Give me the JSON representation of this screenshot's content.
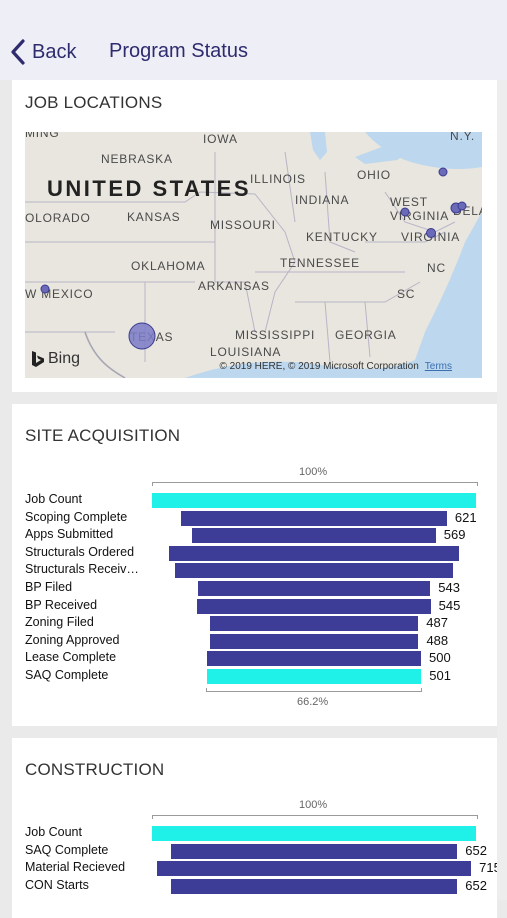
{
  "header": {
    "back_label": "Back",
    "title": "Program Status"
  },
  "job_locations": {
    "title": "JOB LOCATIONS",
    "map": {
      "country_label": "UNITED STATES",
      "state_labels": [
        "MING",
        "NEBRASKA",
        "IOWA",
        "ILLINOIS",
        "OHIO",
        "N.Y.",
        "OLORADO",
        "KANSAS",
        "INDIANA",
        "WEST",
        "VIRGINIA",
        "DELA",
        "MISSOURI",
        "KENTUCKY",
        "VIRGINIA",
        "OKLAHOMA",
        "TENNESSEE",
        "NC",
        "ARKANSAS",
        "SC",
        "W MEXICO",
        "MISSISSIPPI",
        "GEORGIA",
        "TEXAS",
        "LOUISIANA"
      ],
      "attribution": "© 2019 HERE, © 2019 Microsoft Corporation",
      "terms": "Terms",
      "logo": "Bing"
    }
  },
  "site_acquisition": {
    "title": "SITE ACQUISITION",
    "top_pct": "100%",
    "bottom_pct": "66.2%",
    "items": [
      {
        "label": "Job Count",
        "value": "",
        "highlight": true
      },
      {
        "label": "Scoping Complete",
        "value": "621",
        "highlight": false
      },
      {
        "label": "Apps Submitted",
        "value": "569",
        "highlight": false
      },
      {
        "label": "Structurals Ordered",
        "value": "",
        "highlight": false
      },
      {
        "label": "Structurals Receiv…",
        "value": "",
        "highlight": false
      },
      {
        "label": "BP Filed",
        "value": "543",
        "highlight": false
      },
      {
        "label": "BP Received",
        "value": "545",
        "highlight": false
      },
      {
        "label": "Zoning Filed",
        "value": "487",
        "highlight": false
      },
      {
        "label": "Zoning Approved",
        "value": "488",
        "highlight": false
      },
      {
        "label": "Lease Complete",
        "value": "500",
        "highlight": false
      },
      {
        "label": "SAQ Complete",
        "value": "501",
        "highlight": true
      }
    ]
  },
  "construction": {
    "title": "CONSTRUCTION",
    "top_pct": "100%",
    "items": [
      {
        "label": "Job Count",
        "value": "",
        "highlight": true
      },
      {
        "label": "SAQ Complete",
        "value": "652",
        "highlight": false
      },
      {
        "label": "Material Recieved",
        "value": "715",
        "highlight": false
      },
      {
        "label": "CON Starts",
        "value": "652",
        "highlight": false
      }
    ]
  },
  "colors": {
    "header_bg": "#eeeef6",
    "header_text": "#2e2b6e",
    "bar": "#3d3d98",
    "highlight_bar": "#1ff0e8"
  }
}
